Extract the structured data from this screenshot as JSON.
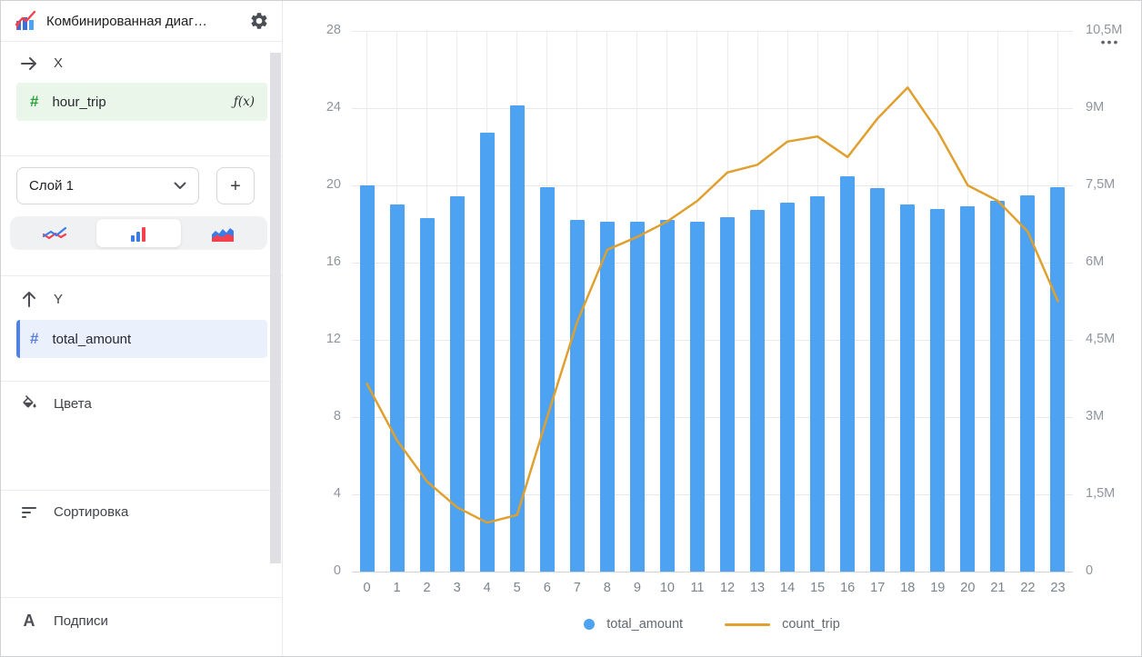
{
  "colors": {
    "bar_blue": "#4DA2F1",
    "line_orange": "#DFA02F",
    "x_field_bg": "#EAF6EA",
    "y_field_bg": "#EAF1FD",
    "y_field_accent": "#5282E0"
  },
  "sidebar": {
    "title": "Комбинированная диаг…",
    "x_section": {
      "label": "X",
      "field": {
        "type_glyph": "#",
        "name": "hour_trip",
        "fx_label": "ƒ(x)"
      }
    },
    "layers": {
      "selected_layer": "Слой 1",
      "add_button": "+"
    },
    "chart_type_switch": {
      "options": [
        "line",
        "bar",
        "area"
      ],
      "selected": "bar"
    },
    "y_section": {
      "label": "Y",
      "field": {
        "type_glyph": "#",
        "name": "total_amount"
      }
    },
    "sections": [
      {
        "label": "Цвета"
      },
      {
        "label": "Сортировка"
      },
      {
        "label": "Подписи"
      }
    ]
  },
  "chart": {
    "menu_dots": "•••"
  },
  "chart_data": {
    "type": "combo (bar + line)",
    "categories": [
      "0",
      "1",
      "2",
      "3",
      "4",
      "5",
      "6",
      "7",
      "8",
      "9",
      "10",
      "11",
      "12",
      "13",
      "14",
      "15",
      "16",
      "17",
      "18",
      "19",
      "20",
      "21",
      "22",
      "23"
    ],
    "series": [
      {
        "name": "total_amount",
        "type": "bar",
        "y_axis": "left",
        "color": "#4DA2F1",
        "values": [
          20.0,
          19.0,
          18.3,
          19.45,
          22.75,
          24.15,
          19.9,
          18.2,
          18.1,
          18.1,
          18.2,
          18.1,
          18.35,
          18.75,
          19.1,
          19.45,
          20.45,
          19.85,
          19.0,
          18.8,
          18.9,
          19.2,
          19.5,
          19.9
        ]
      },
      {
        "name": "count_trip",
        "type": "line",
        "y_axis": "right",
        "color": "#DFA02F",
        "unit": "millions",
        "values": [
          3.65,
          2.55,
          1.75,
          1.25,
          0.95,
          1.1,
          3.0,
          4.85,
          6.25,
          6.5,
          6.8,
          7.2,
          7.75,
          7.9,
          8.35,
          8.45,
          8.05,
          8.8,
          9.4,
          8.55,
          7.5,
          7.2,
          6.6,
          5.25
        ]
      }
    ],
    "left_axis": {
      "max": 28,
      "ticks": [
        0,
        4,
        8,
        12,
        16,
        20,
        24,
        28
      ],
      "tick_labels": [
        "0",
        "4",
        "8",
        "12",
        "16",
        "20",
        "24",
        "28"
      ]
    },
    "right_axis": {
      "max": 10.5,
      "ticks": [
        0,
        1.5,
        3,
        4.5,
        6,
        7.5,
        9,
        10.5
      ],
      "tick_labels": [
        "0",
        "1,5M",
        "3M",
        "4,5M",
        "6M",
        "7,5M",
        "9M",
        "10,5M"
      ]
    },
    "grid": true,
    "legend": {
      "position": "bottom",
      "items": [
        {
          "label": "total_amount",
          "marker": "circle"
        },
        {
          "label": "count_trip",
          "marker": "line"
        }
      ]
    }
  }
}
